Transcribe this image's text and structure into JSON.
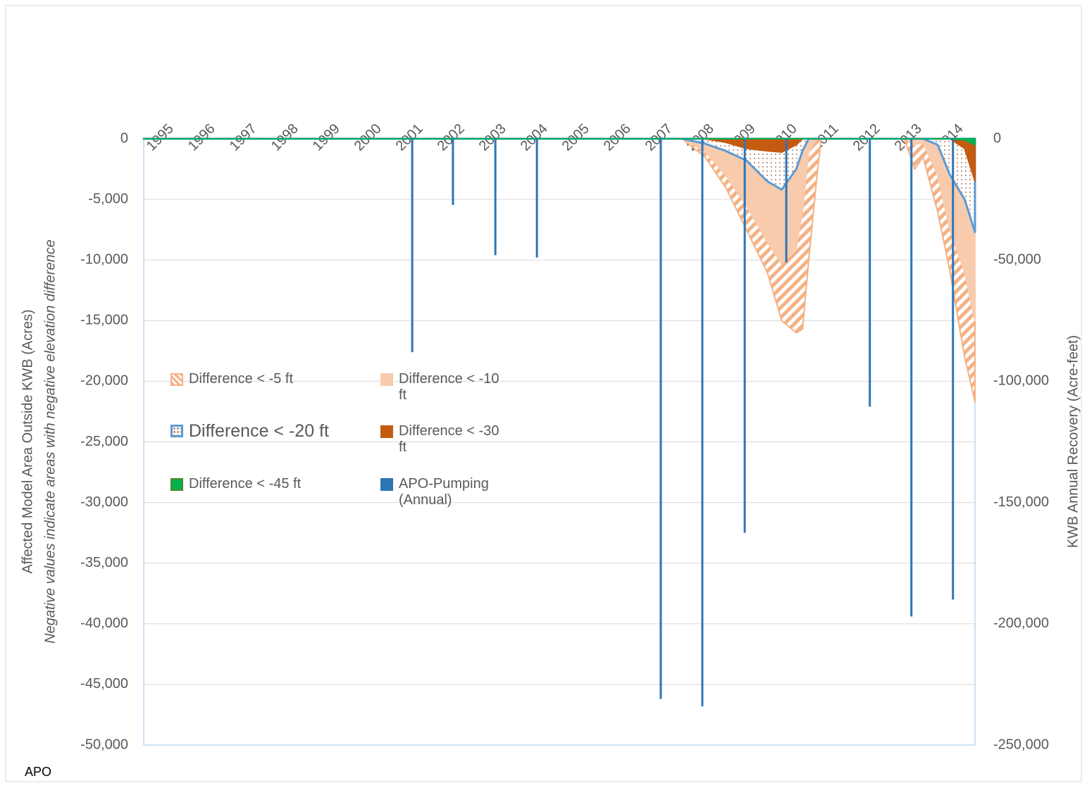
{
  "chart_data": {
    "type": "area",
    "ylabel": "Affected Model Area Outside KWB (Acres)",
    "ylabel_note": "Negative values indicate areas with negative elevation  difference",
    "y2label": "KWB Annual Recovery (Acre-feet)",
    "footnote": "APO",
    "categories": [
      "1995",
      "1996",
      "1997",
      "1998",
      "1999",
      "2000",
      "2001",
      "2002",
      "2003",
      "2004",
      "2005",
      "2006",
      "2007",
      "2008",
      "2009",
      "2010",
      "2011",
      "2012",
      "2013",
      "2014"
    ],
    "xlim": [
      1995,
      2015
    ],
    "ylim": [
      -50000,
      0
    ],
    "yticks": [
      0,
      {
        "value": -5000,
        "label": "-5,000"
      },
      {
        "value": -10000,
        "label": "-10,000"
      },
      {
        "value": -15000,
        "label": "-15,000"
      },
      {
        "value": -20000,
        "label": "-20,000"
      },
      {
        "value": -25000,
        "label": "-25,000"
      },
      {
        "value": -30000,
        "label": "-30,000"
      },
      {
        "value": -35000,
        "label": "-35,000"
      },
      {
        "value": -40000,
        "label": "-40,000"
      },
      {
        "value": -45000,
        "label": "-45,000"
      },
      {
        "value": -50000,
        "label": "-50,000"
      }
    ],
    "y2lim": [
      -250000,
      0
    ],
    "y2ticks": [
      0,
      {
        "value": -50000,
        "label": "-50,000"
      },
      {
        "value": -100000,
        "label": "-100,000"
      },
      {
        "value": -150000,
        "label": "-150,000"
      },
      {
        "value": -200000,
        "label": "-200,000"
      },
      {
        "value": -250000,
        "label": "-250,000"
      }
    ],
    "grid": true,
    "x": [
      1995.0,
      2007.6,
      2007.95,
      2008.5,
      2009.0,
      2009.5,
      2010.0,
      2010.35,
      2010.7,
      2010.85,
      2011.0,
      2011.2,
      2011.3,
      2013.3,
      2013.55,
      2013.75,
      2014.1,
      2014.4,
      2014.75,
      2015.0
    ],
    "series": [
      {
        "name": "Difference < -5 ft",
        "type": "area",
        "color": "#f4b183",
        "fill_style": "hatch",
        "values": [
          0,
          0,
          0,
          -1500,
          -4000,
          -7500,
          -11000,
          -15000,
          -16000,
          -15700,
          -10000,
          -3000,
          0,
          0,
          -2500,
          -1500,
          -6000,
          -11000,
          -18000,
          -21700
        ]
      },
      {
        "name": "Difference < -10 ft",
        "type": "area",
        "color": "#f8cbad",
        "fill_style": "solid",
        "values": [
          0,
          0,
          0,
          -1000,
          -3000,
          -5500,
          -8500,
          -10300,
          -9000,
          -6000,
          -1000,
          0,
          0,
          0,
          -500,
          -300,
          -3000,
          -7500,
          -11000,
          -15000
        ]
      },
      {
        "name": "Difference < -20 ft",
        "type": "area",
        "color": "#5b9bd5",
        "fill_style": "dots",
        "values": [
          0,
          0,
          0,
          -400,
          -1000,
          -1800,
          -3500,
          -4200,
          -2500,
          -1000,
          0,
          0,
          0,
          0,
          0,
          0,
          -500,
          -3000,
          -5000,
          -7700
        ]
      },
      {
        "name": "Difference < -30 ft",
        "type": "area",
        "color": "#c55a11",
        "fill_style": "solid",
        "values": [
          0,
          0,
          0,
          0,
          -300,
          -800,
          -1000,
          -1100,
          -500,
          0,
          0,
          0,
          0,
          0,
          0,
          0,
          0,
          0,
          -800,
          -3500
        ]
      },
      {
        "name": "Difference < -45 ft",
        "type": "area",
        "color": "#00b050",
        "fill_style": "solid",
        "values": [
          0,
          0,
          0,
          0,
          0,
          0,
          0,
          0,
          0,
          0,
          0,
          0,
          0,
          0,
          0,
          0,
          0,
          0,
          -100,
          -500
        ]
      },
      {
        "name": "APO-Pumping (Annual)",
        "type": "bar",
        "axis": "y2",
        "color": "#2e75b6",
        "x": [
          2001.46,
          2002.44,
          2003.46,
          2004.46,
          2007.44,
          2008.44,
          2009.46,
          2010.46,
          2012.47,
          2013.47,
          2014.47
        ],
        "values": [
          -88000,
          -27300,
          -48000,
          -49000,
          -231000,
          -234000,
          -162500,
          -51000,
          -110500,
          -197000,
          -190000
        ]
      }
    ]
  }
}
